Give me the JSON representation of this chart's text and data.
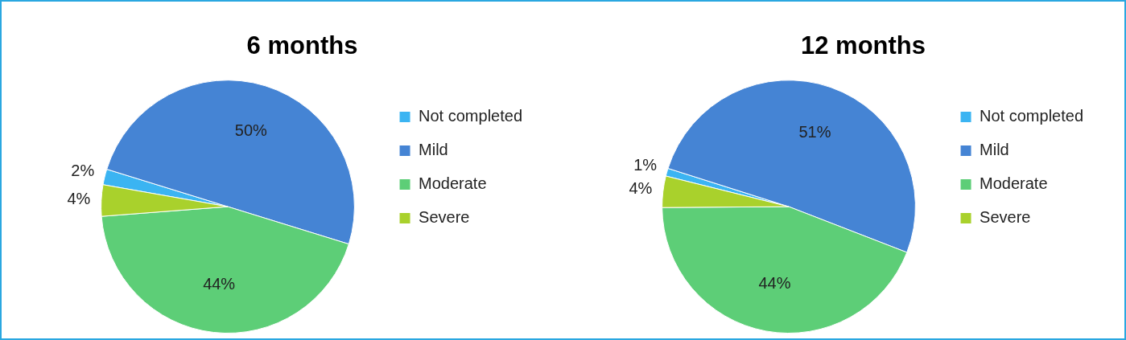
{
  "chart_data": [
    {
      "type": "pie",
      "title": "6 months",
      "categories": [
        "Not completed",
        "Mild",
        "Moderate",
        "Severe"
      ],
      "values": [
        2,
        50,
        44,
        4
      ],
      "colors": [
        "#3bb4f2",
        "#4584d4",
        "#5dce77",
        "#a9d12c"
      ],
      "value_labels": [
        "2%",
        "50%",
        "44%",
        "4%"
      ],
      "legend": "right"
    },
    {
      "type": "pie",
      "title": "12 months",
      "categories": [
        "Not completed",
        "Mild",
        "Moderate",
        "Severe"
      ],
      "values": [
        1,
        51,
        44,
        4
      ],
      "colors": [
        "#3bb4f2",
        "#4584d4",
        "#5dce77",
        "#a9d12c"
      ],
      "value_labels": [
        "1%",
        "51%",
        "44%",
        "4%"
      ],
      "legend": "right"
    }
  ]
}
